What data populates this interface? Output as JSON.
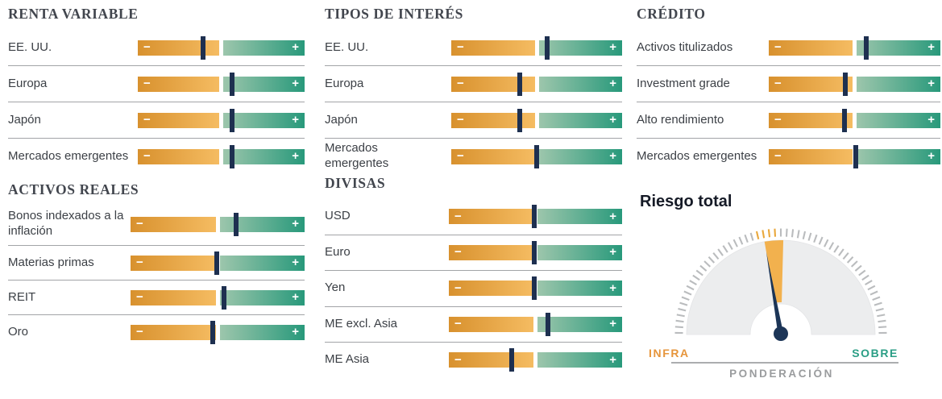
{
  "colors": {
    "orange_left": "#D8912E",
    "orange_right": "#F5BC62",
    "green_left": "#9DC6AC",
    "green_right": "#28997B",
    "marker_navy": "#1E3050",
    "divider": "#A2A4A7",
    "header_text": "#42464E",
    "label_text": "#3C4046",
    "riesgo_title": "#151A26",
    "gauge_gray": "#ECEDEE",
    "gauge_edge": "#E3E4E6",
    "tick_gray": "#BABCBE",
    "tick_orange": "#E9A83C",
    "wedge_orange": "#F2B14E",
    "needle_navy": "#1C3557",
    "infra_orange": "#E6953B",
    "sobre_teal": "#2B9E85",
    "ponderacion_gray": "#9A9C9E",
    "axis_line": "#ABADAF"
  },
  "slider": {
    "minus_label": "−",
    "plus_label": "+",
    "scale_note": "0 = máxima infraponderación (−), 50 = neutral, 100 = máxima sobreponderación (+)"
  },
  "chart_data": {
    "type": "bullet-slider dashboard + gauge",
    "sections": [
      {
        "title": "RENTA VARIABLE",
        "items": [
          {
            "label": "EE. UU.",
            "position": 39
          },
          {
            "label": "Europa",
            "position": 56.5
          },
          {
            "label": "Japón",
            "position": 56.5
          },
          {
            "label": "Mercados emergentes",
            "position": 56.5
          }
        ]
      },
      {
        "title": "TIPOS DE INTERÉS",
        "items": [
          {
            "label": "EE. UU.",
            "position": 56
          },
          {
            "label": "Europa",
            "position": 40
          },
          {
            "label": "Japón",
            "position": 40
          },
          {
            "label": "Mercados emergentes",
            "position": 50
          }
        ]
      },
      {
        "title": "CRÉDITO",
        "items": [
          {
            "label": "Activos titulizados",
            "position": 57
          },
          {
            "label": "Investment grade",
            "position": 44.5
          },
          {
            "label": "Alto rendimiento",
            "position": 44
          },
          {
            "label": "Mercados emergentes",
            "position": 50.5
          }
        ]
      },
      {
        "title": "ACTIVOS REALES",
        "items": [
          {
            "label": "Bonos indexados a la inflación",
            "position": 60.5
          },
          {
            "label": "Materias primas",
            "position": 49.5
          },
          {
            "label": "REIT",
            "position": 53.5
          },
          {
            "label": "Oro",
            "position": 47
          }
        ]
      },
      {
        "title": "DIVISAS",
        "items": [
          {
            "label": "USD",
            "position": 49.5
          },
          {
            "label": "Euro",
            "position": 49.5
          },
          {
            "label": "Yen",
            "position": 49.5
          },
          {
            "label": "ME excl. Asia",
            "position": 57
          },
          {
            "label": "ME Asia",
            "position": 36.5
          }
        ]
      }
    ],
    "gauge": {
      "title": "Riesgo total",
      "min_label": "INFRA",
      "max_label": "SOBRE",
      "axis_label": "PONDERACIÓN",
      "range_deg": [
        -90,
        90
      ],
      "needle_angle_deg": -10,
      "wedge_deg": [
        -10,
        1.5
      ],
      "orange_ticks_deg": [
        -14,
        -0.5
      ]
    }
  }
}
